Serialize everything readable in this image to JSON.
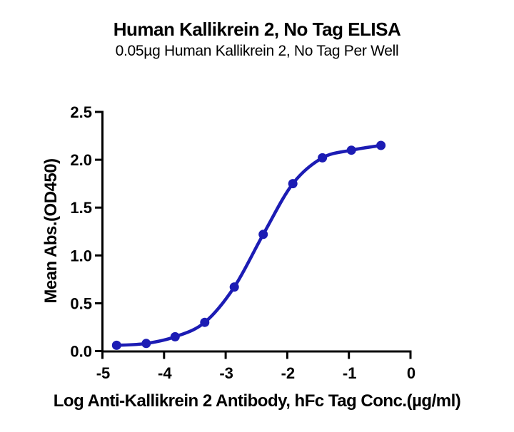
{
  "title": "Human Kallikrein 2, No Tag ELISA",
  "subtitle": "0.05µg Human Kallikrein 2, No Tag Per Well",
  "chart_data": {
    "type": "line",
    "smooth": true,
    "marker": "circle",
    "title": "Human Kallikrein 2, No Tag ELISA",
    "subtitle": "0.05µg Human Kallikrein 2, No Tag Per Well",
    "xlabel": "Log Anti-Kallikrein 2 Antibody, hFc Tag Conc.(µg/ml)",
    "ylabel": "Mean Abs.(OD450)",
    "xlim": [
      -5,
      0
    ],
    "ylim": [
      0,
      2.5
    ],
    "x_ticks": [
      -5,
      -4,
      -3,
      -2,
      -1,
      0
    ],
    "x_tick_labels": [
      "-5",
      "-4",
      "-3",
      "-2",
      "-1",
      "0"
    ],
    "y_ticks": [
      0,
      0.5,
      1.0,
      1.5,
      2.0,
      2.5
    ],
    "y_tick_labels": [
      "0.0",
      "0.5",
      "1.0",
      "1.5",
      "2.0",
      "2.5"
    ],
    "x": [
      -4.77,
      -4.29,
      -3.82,
      -3.34,
      -2.86,
      -2.39,
      -1.91,
      -1.43,
      -0.96,
      -0.48
    ],
    "y": [
      0.06,
      0.08,
      0.15,
      0.3,
      0.67,
      1.22,
      1.75,
      2.02,
      2.1,
      2.15
    ],
    "grid": false,
    "legend": "none",
    "colors": {
      "line": "#1c1cb4",
      "marker": "#1c1cb4",
      "axis": "#000000",
      "text": "#000000",
      "background": "#ffffff"
    }
  }
}
